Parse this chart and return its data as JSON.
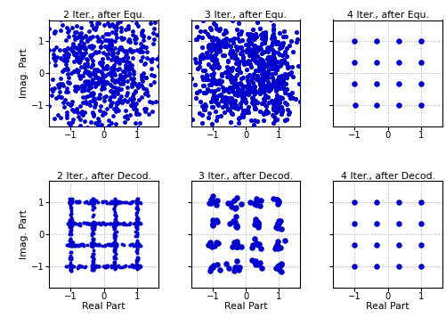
{
  "titles_row1": [
    "2 Iter., after Equ.",
    "3 Iter., after Equ.",
    "4 Iter., after Equ."
  ],
  "titles_row2": [
    "2 Iter., after Decod.",
    "3 Iter., after Decod.",
    "4 Iter., after Decod."
  ],
  "xlabel": "Real Part",
  "ylabel": "Imag. Part",
  "dot_color": "#0000CC",
  "xlim": [
    -1.65,
    1.65
  ],
  "ylim": [
    -1.65,
    1.65
  ],
  "xticks": [
    -1,
    0,
    1
  ],
  "yticks": [
    -1,
    0,
    1
  ],
  "qam_levels": [
    -1.0,
    -0.3333,
    0.3333,
    1.0
  ],
  "n_points_cloud": 700,
  "ms_cloud1": 12,
  "ms_cloud2": 14,
  "ms_single": 22,
  "ms_decod2": 8,
  "ms_decod3": 22
}
